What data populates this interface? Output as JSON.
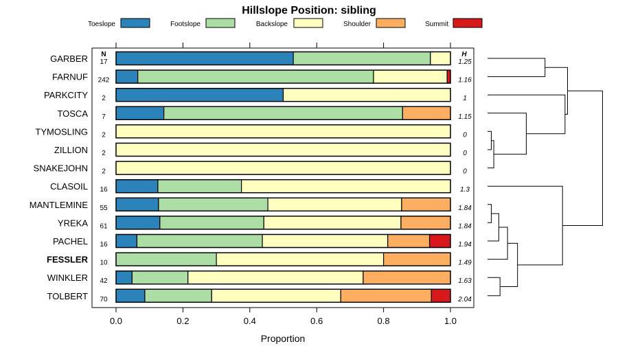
{
  "chart_data": {
    "type": "bar",
    "orientation": "horizontal-stacked",
    "title": "Hillslope Position: sibling",
    "xlabel": "Proportion",
    "xlim": [
      0,
      1
    ],
    "xticks": [
      "0.0",
      "0.2",
      "0.4",
      "0.6",
      "0.8",
      "1.0"
    ],
    "xtick_values": [
      0,
      0.2,
      0.4,
      0.6,
      0.8,
      1.0
    ],
    "n_header": "N",
    "h_header": "H",
    "legend_placement": "top",
    "series": [
      {
        "name": "Toeslope",
        "color": "#2b83ba"
      },
      {
        "name": "Footslope",
        "color": "#abdda4"
      },
      {
        "name": "Backslope",
        "color": "#ffffbf"
      },
      {
        "name": "Shoulder",
        "color": "#fdae61"
      },
      {
        "name": "Summit",
        "color": "#d7191c"
      }
    ],
    "rows": [
      {
        "label": "GARBER",
        "n": "17",
        "h": "1.25",
        "bold": false,
        "values": [
          0.53,
          0.41,
          0.06,
          0.0,
          0.0
        ]
      },
      {
        "label": "FARNUF",
        "n": "242",
        "h": "1.16",
        "bold": false,
        "values": [
          0.065,
          0.705,
          0.22,
          0.0,
          0.01
        ]
      },
      {
        "label": "PARKCITY",
        "n": "2",
        "h": "1",
        "bold": false,
        "values": [
          0.5,
          0.0,
          0.5,
          0.0,
          0.0
        ]
      },
      {
        "label": "TOSCA",
        "n": "7",
        "h": "1.15",
        "bold": false,
        "values": [
          0.143,
          0.714,
          0.0,
          0.143,
          0.0
        ]
      },
      {
        "label": "TYMOSLING",
        "n": "2",
        "h": "0",
        "bold": false,
        "values": [
          0.0,
          0.0,
          1.0,
          0.0,
          0.0
        ]
      },
      {
        "label": "ZILLION",
        "n": "2",
        "h": "0",
        "bold": false,
        "values": [
          0.0,
          0.0,
          1.0,
          0.0,
          0.0
        ]
      },
      {
        "label": "SNAKEJOHN",
        "n": "2",
        "h": "0",
        "bold": false,
        "values": [
          0.0,
          0.0,
          1.0,
          0.0,
          0.0
        ]
      },
      {
        "label": "CLASOIL",
        "n": "16",
        "h": "1.3",
        "bold": false,
        "values": [
          0.125,
          0.25,
          0.625,
          0.0,
          0.0
        ]
      },
      {
        "label": "MANTLEMINE",
        "n": "55",
        "h": "1.84",
        "bold": false,
        "values": [
          0.127,
          0.327,
          0.4,
          0.146,
          0.0
        ]
      },
      {
        "label": "YREKA",
        "n": "61",
        "h": "1.84",
        "bold": false,
        "values": [
          0.131,
          0.311,
          0.41,
          0.148,
          0.0
        ]
      },
      {
        "label": "PACHEL",
        "n": "16",
        "h": "1.94",
        "bold": false,
        "values": [
          0.0625,
          0.375,
          0.375,
          0.125,
          0.0625
        ]
      },
      {
        "label": "FESSLER",
        "n": "10",
        "h": "1.49",
        "bold": true,
        "values": [
          0.0,
          0.3,
          0.5,
          0.2,
          0.0
        ]
      },
      {
        "label": "WINKLER",
        "n": "42",
        "h": "1.63",
        "bold": false,
        "values": [
          0.048,
          0.167,
          0.524,
          0.261,
          0.0
        ]
      },
      {
        "label": "TOLBERT",
        "n": "70",
        "h": "2.04",
        "bold": false,
        "values": [
          0.086,
          0.2,
          0.386,
          0.271,
          0.057
        ]
      }
    ],
    "dendrogram": {
      "merges": [
        {
          "a": "r4",
          "b": "r5",
          "h": 0.03
        },
        {
          "a": "m0",
          "b": "r6",
          "h": 0.05
        },
        {
          "a": "r8",
          "b": "r9",
          "h": 0.03
        },
        {
          "a": "m2",
          "b": "r10",
          "h": 0.09
        },
        {
          "a": "r12",
          "b": "r13",
          "h": 0.1
        },
        {
          "a": "m3",
          "b": "r11",
          "h": 0.16
        },
        {
          "a": "m5",
          "b": "m4",
          "h": 0.24
        },
        {
          "a": "r7",
          "b": "m6",
          "h": 0.6
        },
        {
          "a": "r0",
          "b": "r1",
          "h": 0.46
        },
        {
          "a": "r3",
          "b": "m1",
          "h": 0.31
        },
        {
          "a": "r2",
          "b": "m9",
          "h": 0.62
        },
        {
          "a": "m8",
          "b": "m10",
          "h": 0.64
        },
        {
          "a": "m11",
          "b": "m7",
          "h": 0.92
        }
      ]
    }
  }
}
